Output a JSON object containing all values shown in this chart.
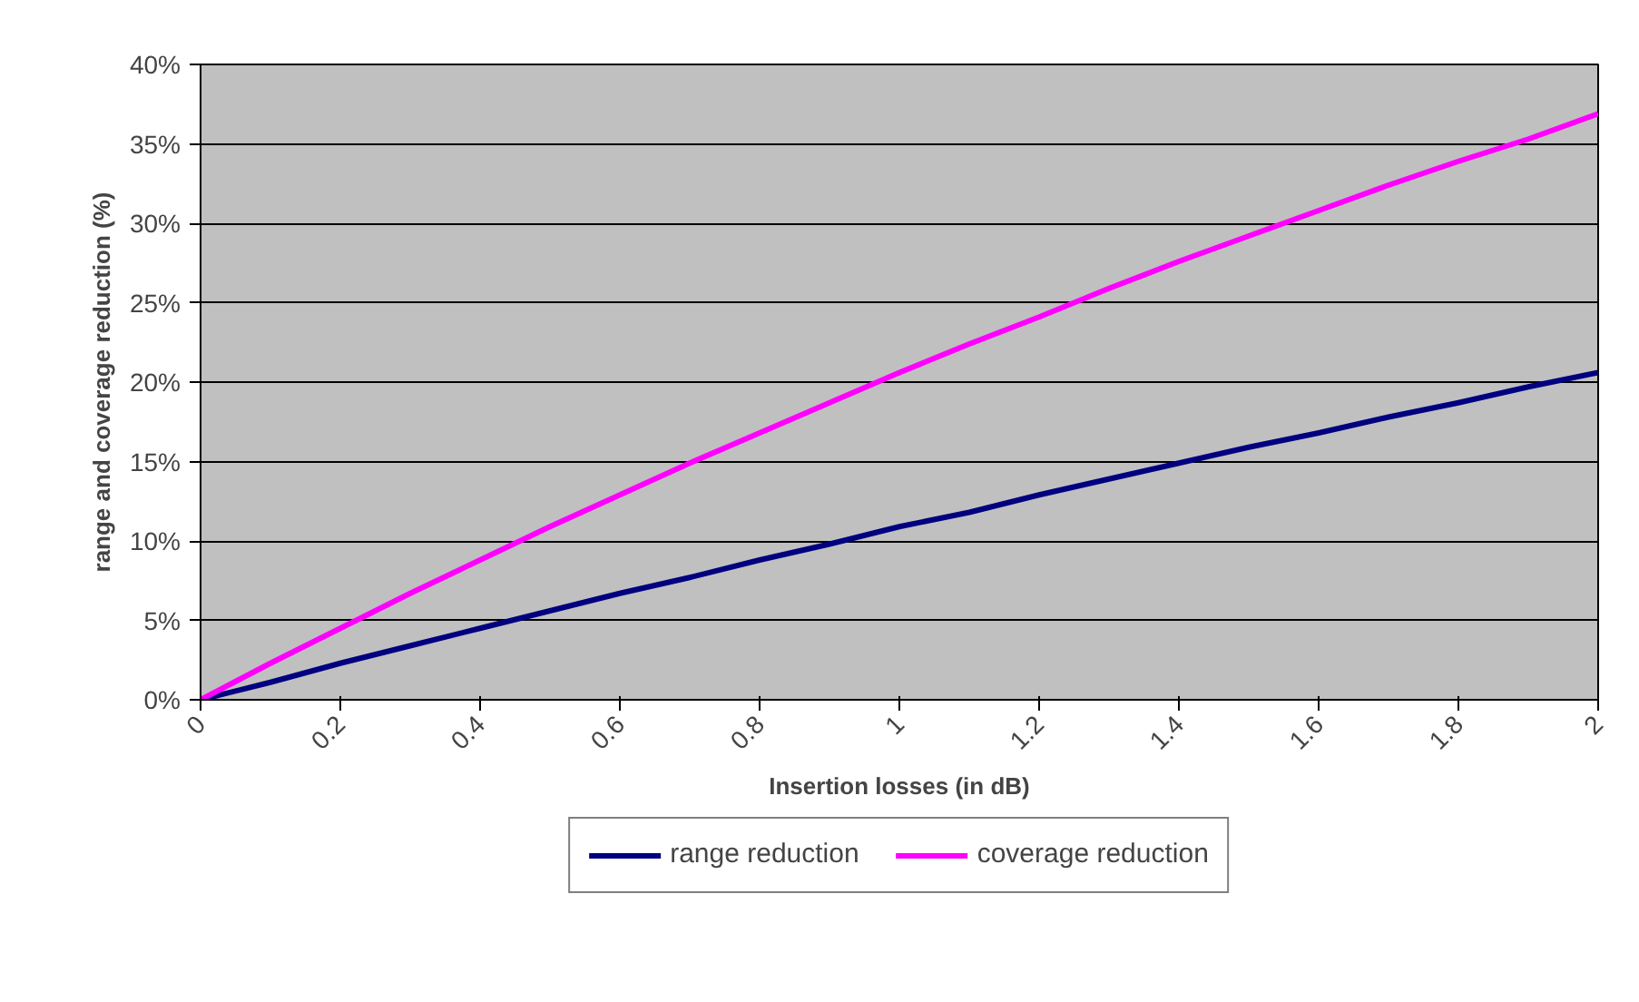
{
  "chart_data": {
    "type": "line",
    "xlabel": "Insertion losses (in dB)",
    "ylabel": "range and coverage reduction (%)",
    "x": [
      0,
      0.1,
      0.2,
      0.3,
      0.4,
      0.5,
      0.6,
      0.7,
      0.8,
      0.9,
      1.0,
      1.1,
      1.2,
      1.3,
      1.4,
      1.5,
      1.6,
      1.7,
      1.8,
      1.9,
      2.0
    ],
    "series": [
      {
        "name": "range reduction",
        "color": "#000080",
        "values": [
          0,
          1.1,
          2.3,
          3.4,
          4.5,
          5.6,
          6.7,
          7.7,
          8.8,
          9.8,
          10.9,
          11.8,
          12.9,
          13.9,
          14.9,
          15.9,
          16.8,
          17.8,
          18.7,
          19.7,
          20.6
        ]
      },
      {
        "name": "coverage reduction",
        "color": "#ff00ff",
        "values": [
          0,
          2.3,
          4.5,
          6.7,
          8.8,
          10.9,
          12.9,
          14.9,
          16.8,
          18.7,
          20.6,
          22.4,
          24.1,
          25.9,
          27.6,
          29.2,
          30.8,
          32.4,
          33.9,
          35.3,
          36.9
        ]
      }
    ],
    "xlim": [
      0,
      2
    ],
    "xticks": [
      0,
      0.2,
      0.4,
      0.6,
      0.8,
      1,
      1.2,
      1.4,
      1.6,
      1.8,
      2
    ],
    "ylim": [
      0,
      40
    ],
    "yticks": [
      {
        "value": 0,
        "label": "0%"
      },
      {
        "value": 5,
        "label": "5%"
      },
      {
        "value": 10,
        "label": "10%"
      },
      {
        "value": 15,
        "label": "15%"
      },
      {
        "value": 20,
        "label": "20%"
      },
      {
        "value": 25,
        "label": "25%"
      },
      {
        "value": 30,
        "label": "30%"
      },
      {
        "value": 35,
        "label": "35%"
      },
      {
        "value": 40,
        "label": "40%"
      }
    ],
    "grid": "y",
    "legend": "bottom",
    "marker": "none",
    "line_style": "solid"
  }
}
